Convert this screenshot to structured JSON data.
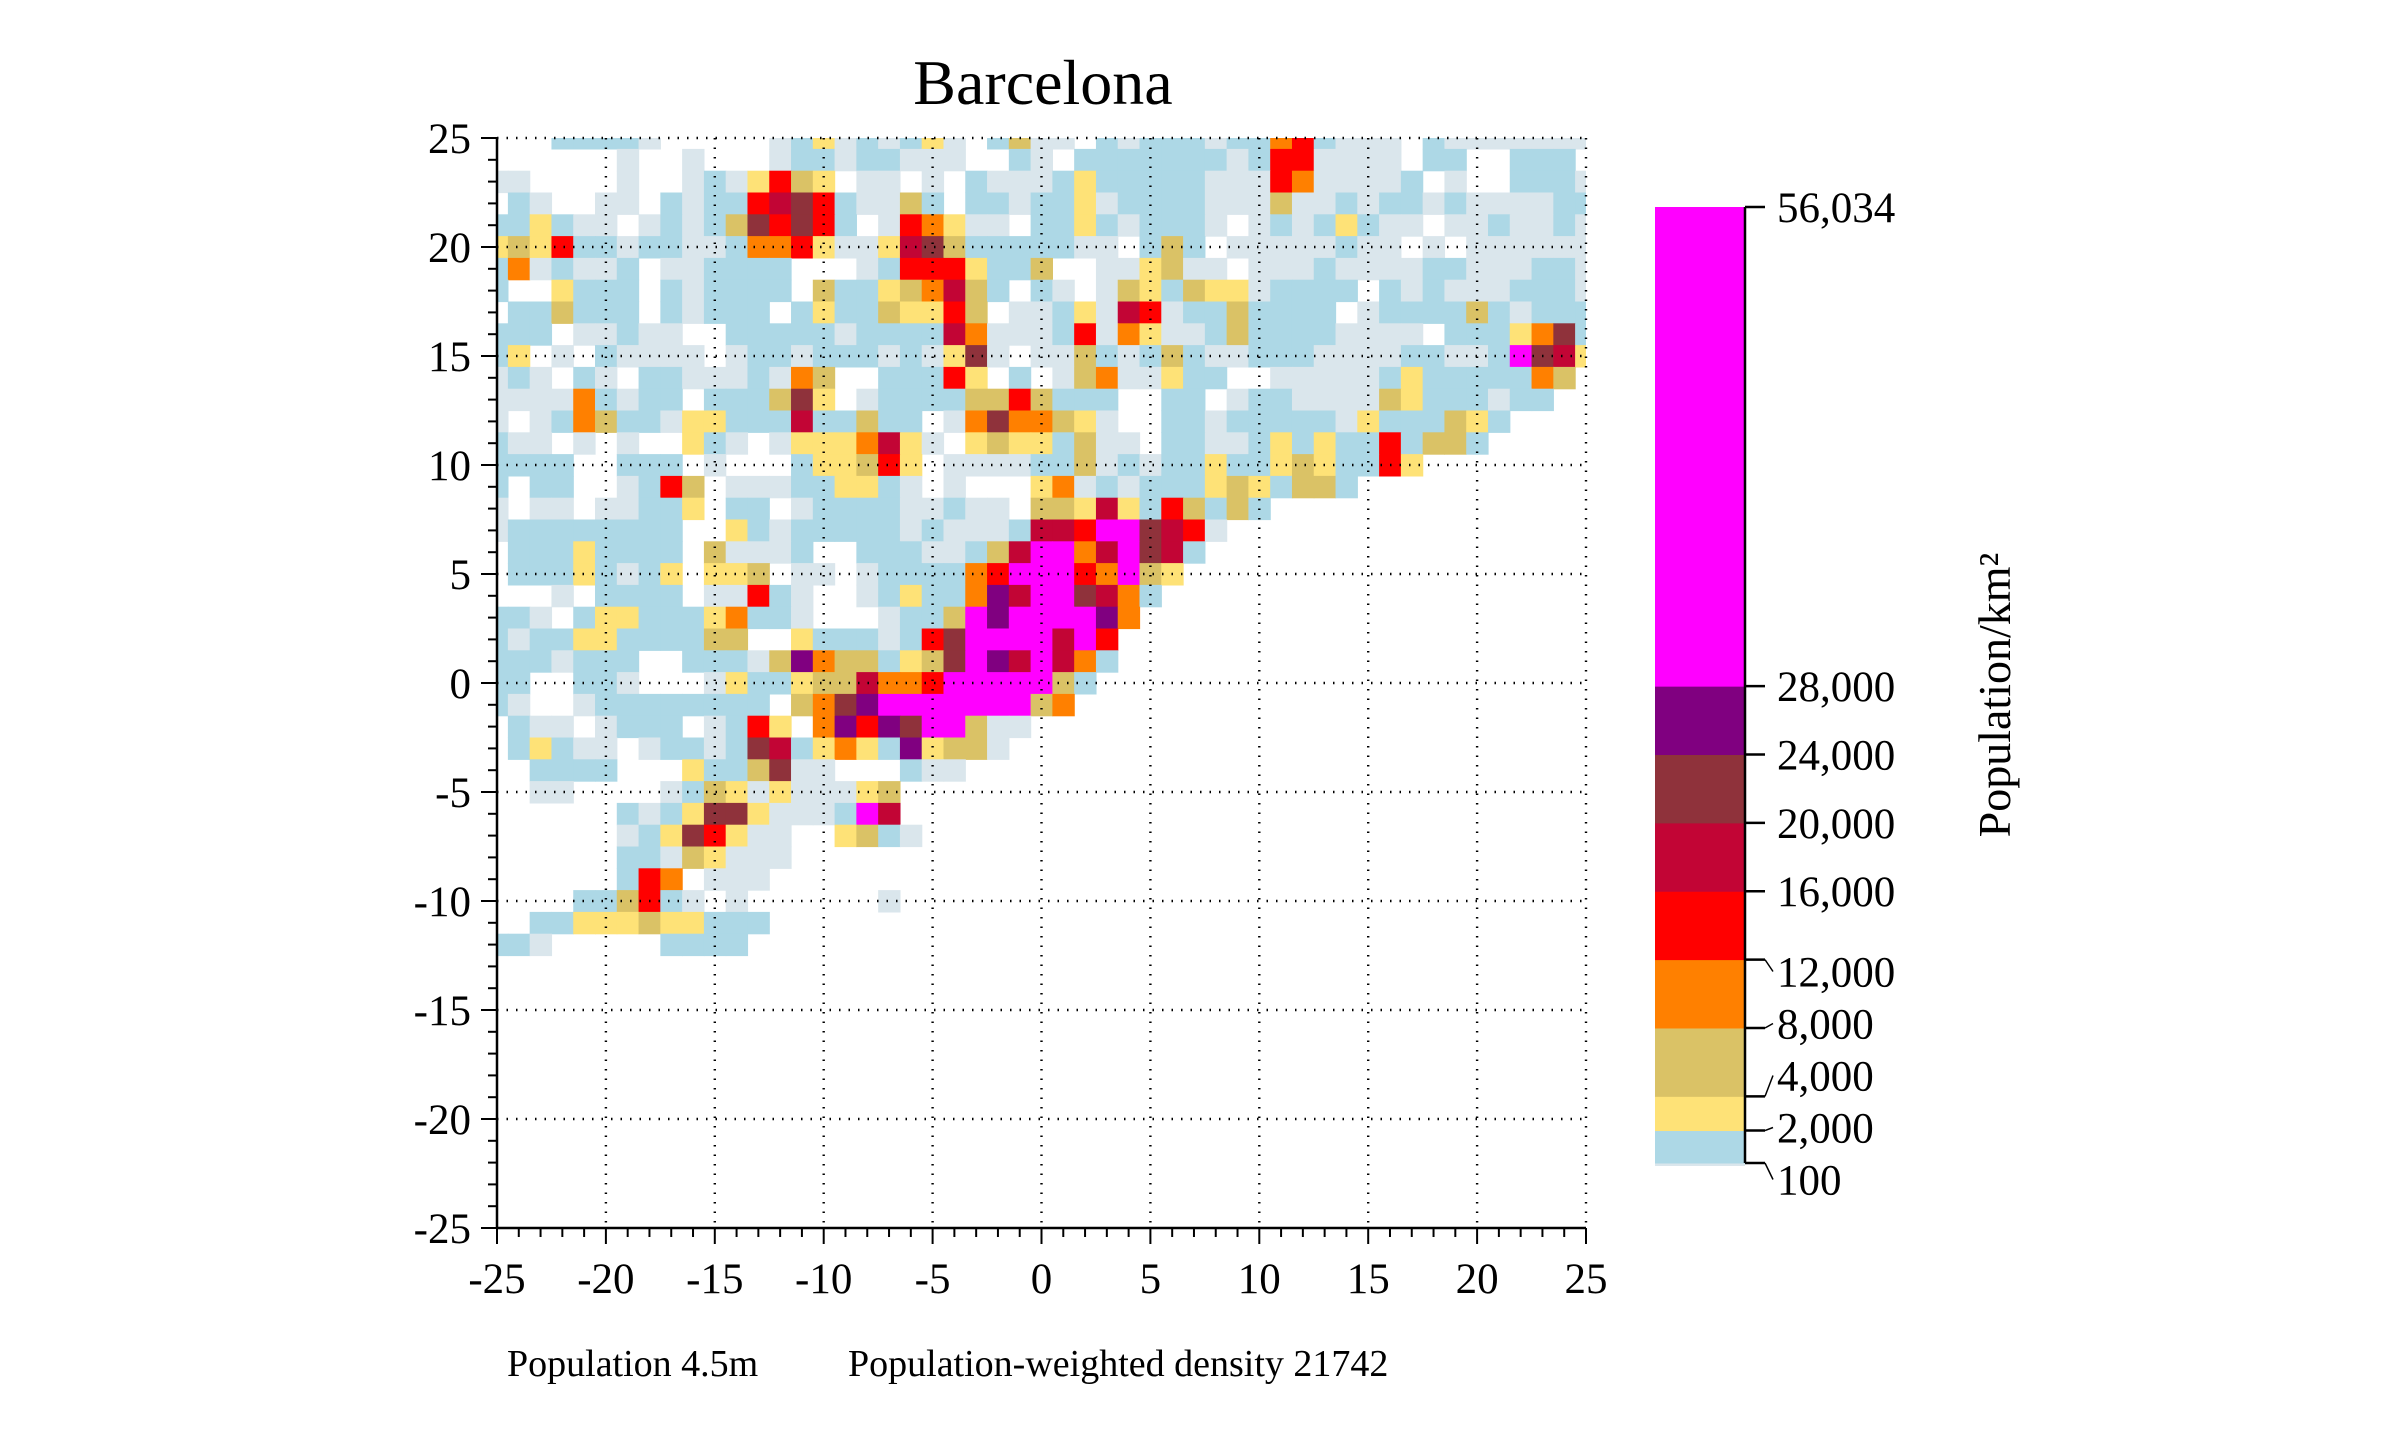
{
  "chart_data": {
    "type": "heatmap",
    "title": "Barcelona",
    "xlabel": "",
    "ylabel": "",
    "xlim": [
      -25,
      25
    ],
    "ylim": [
      -25,
      25
    ],
    "grid": "dotted, every 5",
    "xticks": [
      "-25",
      "-20",
      "-15",
      "-10",
      "-5",
      "0",
      "5",
      "10",
      "15",
      "20",
      "25"
    ],
    "yticks": [
      "25",
      "20",
      "15",
      "10",
      "5",
      "0",
      "-5",
      "-10",
      "-15",
      "-20",
      "-25"
    ],
    "cells": {
      "description_of_codes": "one character per 1 km cell, x from -25 to 25, rows from y=25 downward",
      "x_start": -25,
      "y_start": 25,
      "codes": {
        "a": "#dae6ec",
        "b": "#add8e6",
        "y": "#fee277",
        "k": "#dac266",
        "o": "#ff8000",
        "r": "#ff0000",
        "c": "#c20535",
        "m": "#8f323b",
        "p": "#800080",
        "M": "#ff00ff"
      },
      "rows": [
        "...bbbba.....abyababya.bkaa.babbbabborbaaa.baaaaaaa",
        "......a..a...abbabbaaa..ba.bbbbbbbabrraaaa.bb..bbb.",
        "aa....a..abayrky.aa.a.baaabybbbbbaaaroaaaab.a..bbba",
        ".ba..aa.babbrcmrbaakb.bbabbyabbbbaaakaababbabaaaabb",
        "bbybaa.ababkmrmrb.aroyaa.bbybabbba.ababybaa.aabaaba",
        "ykyrbbabbaabooryaaycmkbbbbbaa.bkb.aaaaabaa.a.aaaaaa",
        "boabaab.aabbbb...abrrrybbk..aaykaa.aaabaaaabbaaabba",
        "b..ybbb.babbbb.kbbykockb.ba.akybkyyabbbb.babaaabbba",
        ".bbkbbb.babbb.bybbkyyrk.aabyacrabbkbbbb.abbbbkbabbb",
        "bbb.aabaa..bbbbbabbbbcoaaabraoyaabkbbbbaaaa.bbbyomb",
        "by.a.baaaa.abbabbbabayma.aakbabkbaabbbaaaabbaabMmcy",
        "aba.ba.bbaaabaok..bbbry.b.akoaaybb..aaaaabybbbbbok.",
        "aaaaobabb.bbbkmy.abbbbkkrkbbb..bb.abbaaaakybbbabb..",
        "a.abokbbayybbbcbbkbb.aomookya..bbabbbbbaybbbkyb....",
        "baa.a.a..yba.ayyyocya.ykyybkaa.bbaabybybbrbkkb.....",
        "bbbb..bbb.a...byykry.aaaabbkababbybbykybbry........",
        "b.bb..abrk.aaabbyyba.a...yoababbbykybkkb...........",
        "a.aa.aabby.bb.abbbbaabaa.kkycybrkbkb...............",
        "abbbbbbbb..ybabbbbbabaaabccrMMmcra.................",
        ".bbbybbbb.kaaab..bbbaabkcMMocMmcb..................",
        ".bbbybaby.yyk.aa.abbbborMMMroMky...................",
        "...a.bbbb.aarba..abybbopcMMmcob....................",
        "bba.byybbbyobba...abbkMpMMMMpo.....................",
        "babbyybbbbkk..ybbbabrmMMMMcMr......................",
        "bbbabbb..bbbakpokkbykmMpcMcob......................",
        "bb..bba...aybbykkcoorMMMMMkb.......................",
        "ba..abbbbbbbb.kompMMMMMMMko........................",
        ".baa.abbb.abry.oprpmMMkaa.",
        ".bybaa.abbabmcbyoybpykka..",
        "..bbbb...ybbkmaa...baa....",
        "..aa....abkyayaaayk.......",
        "......babymmyaaabMc.......",
        "......abymryaa..ykba......",
        "......bbakyaaa............",
        "......bro.aaa.............",
        "....bbkrba.a......a.......",
        "..bbyyykyybbb.............",
        "bba.....bbbb.............."
      ]
    },
    "colorbar": {
      "label": "Population/km²",
      "min": 100,
      "max": 56034,
      "ticks": [
        {
          "value": 56034,
          "label": "56,034"
        },
        {
          "value": 28000,
          "label": "28,000"
        },
        {
          "value": 24000,
          "label": "24,000"
        },
        {
          "value": 20000,
          "label": "20,000"
        },
        {
          "value": 16000,
          "label": "16,000"
        },
        {
          "value": 12000,
          "label": "12,000"
        },
        {
          "value": 8000,
          "label": "8,000"
        },
        {
          "value": 4000,
          "label": "4,000"
        },
        {
          "value": 2000,
          "label": "2,000"
        },
        {
          "value": 100,
          "label": "100"
        }
      ],
      "bins": [
        {
          "from": 100,
          "to": 2000,
          "color": "#add8e6"
        },
        {
          "from": 2000,
          "to": 4000,
          "color": "#fee277"
        },
        {
          "from": 4000,
          "to": 8000,
          "color": "#dac266"
        },
        {
          "from": 8000,
          "to": 12000,
          "color": "#ff8000"
        },
        {
          "from": 12000,
          "to": 16000,
          "color": "#ff0000"
        },
        {
          "from": 16000,
          "to": 20000,
          "color": "#c20535"
        },
        {
          "from": 20000,
          "to": 24000,
          "color": "#8f323b"
        },
        {
          "from": 24000,
          "to": 28000,
          "color": "#800080"
        },
        {
          "from": 28000,
          "to": 56034,
          "color": "#ff00ff"
        }
      ]
    },
    "footer": {
      "population": "Population 4.5m",
      "weighted_density": "Population-weighted density 21742"
    }
  }
}
